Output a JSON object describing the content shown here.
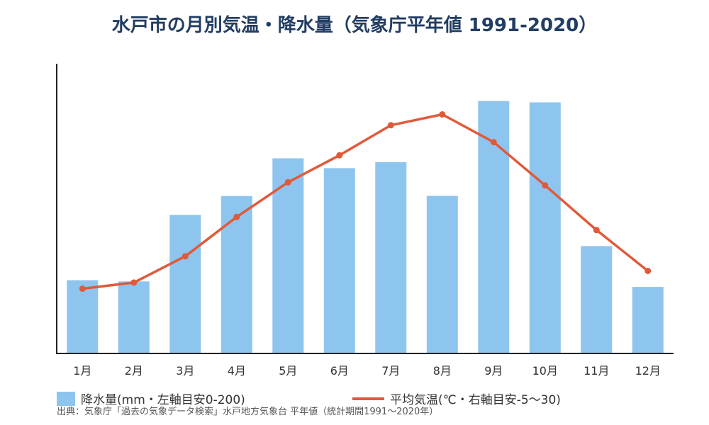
{
  "chart_data": {
    "type": "bar",
    "title": "水戸市の月別気温・降水量（気象庁平年値 1991-2020）",
    "categories": [
      "1月",
      "2月",
      "3月",
      "4月",
      "5月",
      "6月",
      "7月",
      "8月",
      "9月",
      "10月",
      "11月",
      "12月"
    ],
    "series": [
      {
        "name": "降水量(mm・左軸目安0-200)",
        "type": "bar",
        "axis": "left",
        "color": "#8ec5ee",
        "values": [
          54.3,
          53.4,
          102.7,
          116.7,
          144.6,
          137.3,
          141.8,
          116.8,
          187.1,
          186.1,
          79.6,
          49.3
        ]
      },
      {
        "name": "平均気温(℃・右軸目安-5〜30)",
        "type": "line",
        "axis": "right",
        "color": "#e05a3a",
        "values": [
          3.4,
          4.2,
          7.6,
          12.7,
          17.2,
          20.7,
          24.6,
          26.0,
          22.4,
          16.8,
          11.0,
          5.7
        ]
      }
    ],
    "y_left": {
      "min": 0,
      "max": 200
    },
    "y_right": {
      "min": -5,
      "max": 30
    },
    "grid": false,
    "legend_position": "bottom-left",
    "source": "出典：気象庁「過去の気象データ検索」水戸地方気象台 平年値（統計期間1991〜2020年）"
  }
}
